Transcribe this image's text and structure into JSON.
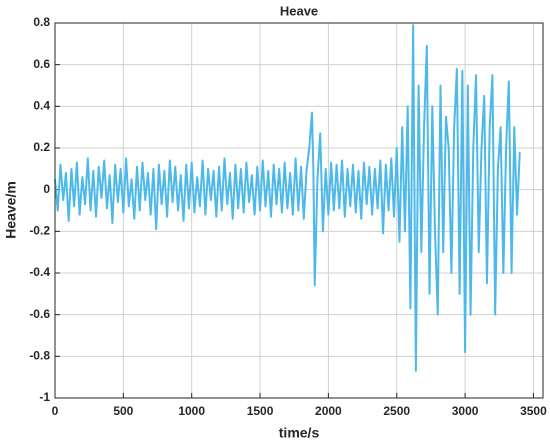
{
  "chart_data": {
    "type": "line",
    "title": "Heave",
    "x_label": "time/s",
    "y_label": "Heave/m",
    "xlim": [
      0,
      3570
    ],
    "ylim": [
      -1,
      0.8
    ],
    "xticks": [
      0,
      500,
      1000,
      1500,
      2000,
      2500,
      3000,
      3500
    ],
    "yticks": [
      -1,
      -0.8,
      -0.6,
      -0.4,
      -0.2,
      0,
      0.2,
      0.4,
      0.6,
      0.8
    ],
    "grid": true,
    "x": [
      0,
      20,
      40,
      60,
      80,
      100,
      120,
      140,
      160,
      180,
      200,
      220,
      240,
      260,
      280,
      300,
      320,
      340,
      360,
      380,
      400,
      420,
      440,
      460,
      480,
      500,
      520,
      540,
      560,
      580,
      600,
      620,
      640,
      660,
      680,
      700,
      720,
      740,
      760,
      780,
      800,
      820,
      840,
      860,
      880,
      900,
      920,
      940,
      960,
      980,
      1000,
      1020,
      1040,
      1060,
      1080,
      1100,
      1120,
      1140,
      1160,
      1180,
      1200,
      1220,
      1240,
      1260,
      1280,
      1300,
      1320,
      1340,
      1360,
      1380,
      1400,
      1420,
      1440,
      1460,
      1480,
      1500,
      1520,
      1540,
      1560,
      1580,
      1600,
      1620,
      1640,
      1660,
      1680,
      1700,
      1720,
      1740,
      1760,
      1780,
      1800,
      1820,
      1840,
      1860,
      1880,
      1890,
      1900,
      1920,
      1940,
      1960,
      1980,
      2000,
      2020,
      2040,
      2060,
      2080,
      2100,
      2120,
      2140,
      2160,
      2180,
      2200,
      2220,
      2240,
      2260,
      2280,
      2300,
      2320,
      2340,
      2360,
      2380,
      2400,
      2420,
      2440,
      2460,
      2480,
      2500,
      2520,
      2540,
      2560,
      2580,
      2600,
      2620,
      2640,
      2660,
      2680,
      2700,
      2720,
      2740,
      2760,
      2780,
      2800,
      2820,
      2840,
      2860,
      2880,
      2900,
      2920,
      2940,
      2960,
      2980,
      3000,
      3020,
      3040,
      3060,
      3080,
      3100,
      3120,
      3140,
      3160,
      3180,
      3200,
      3220,
      3240,
      3260,
      3280,
      3300,
      3320,
      3340,
      3360,
      3380,
      3400
    ],
    "series": [
      {
        "color": "#4db8ea",
        "values": [
          0.05,
          -0.1,
          0.12,
          -0.05,
          0.08,
          -0.15,
          0.1,
          -0.08,
          0.13,
          -0.12,
          0.06,
          -0.07,
          0.15,
          -0.1,
          0.09,
          -0.13,
          0.11,
          -0.04,
          0.14,
          -0.09,
          0.07,
          -0.16,
          0.12,
          -0.06,
          0.1,
          -0.11,
          0.15,
          -0.08,
          0.05,
          -0.14,
          0.11,
          -0.1,
          0.13,
          -0.05,
          0.08,
          -0.12,
          0.1,
          -0.19,
          0.12,
          -0.07,
          0.09,
          -0.13,
          0.14,
          -0.06,
          0.11,
          -0.1,
          0.07,
          -0.15,
          0.12,
          -0.09,
          0.13,
          -0.11,
          0.06,
          -0.08,
          0.14,
          -0.12,
          0.1,
          -0.05,
          0.09,
          -0.13,
          0.11,
          -0.1,
          0.15,
          -0.07,
          0.08,
          -0.14,
          0.12,
          -0.09,
          0.1,
          -0.11,
          0.13,
          -0.06,
          0.07,
          -0.12,
          0.11,
          -0.1,
          0.14,
          -0.08,
          0.09,
          -0.13,
          0.12,
          -0.07,
          0.1,
          -0.11,
          0.13,
          -0.09,
          0.08,
          -0.12,
          0.15,
          -0.1,
          0.11,
          -0.14,
          0.09,
          0.2,
          0.37,
          0.1,
          -0.46,
          0.05,
          0.27,
          -0.2,
          0.1,
          -0.12,
          0.13,
          -0.1,
          0.12,
          -0.09,
          0.14,
          -0.13,
          0.1,
          -0.08,
          0.12,
          -0.11,
          0.09,
          -0.14,
          0.13,
          -0.07,
          0.11,
          -0.12,
          0.1,
          -0.09,
          0.14,
          -0.21,
          0.12,
          -0.1,
          0.15,
          -0.13,
          0.2,
          -0.25,
          0.3,
          -0.2,
          0.4,
          -0.57,
          0.79,
          -0.87,
          0.5,
          -0.3,
          0.3,
          0.69,
          -0.5,
          0.4,
          -0.2,
          -0.6,
          0.5,
          -0.3,
          0.35,
          0.2,
          -0.4,
          0.3,
          0.58,
          -0.5,
          0.57,
          -0.78,
          0.5,
          -0.6,
          0.2,
          0.55,
          -0.3,
          0.2,
          0.45,
          -0.45,
          0.3,
          0.55,
          -0.6,
          0.1,
          0.3,
          -0.4,
          0.2,
          0.52,
          -0.4,
          0.3,
          -0.12,
          0.18
        ]
      }
    ]
  }
}
